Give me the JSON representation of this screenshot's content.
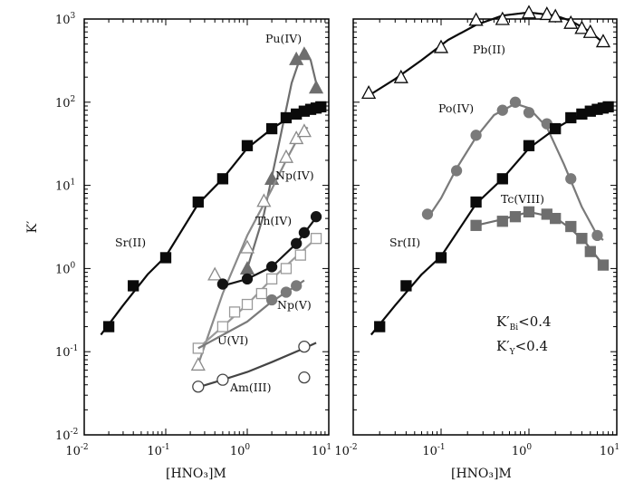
{
  "chart_data": [
    {
      "type": "scatter",
      "panel": "left",
      "xscale": "log",
      "yscale": "log",
      "xlim": [
        0.01,
        10
      ],
      "ylim": [
        0.01,
        1000
      ],
      "ylabel": "K′",
      "xlabel": "[HNO₃]M",
      "x_ticks": [
        {
          "base": "10",
          "exp": "-2"
        },
        {
          "base": "10",
          "exp": "-1"
        },
        {
          "base": "10",
          "exp": "0"
        },
        {
          "base": "10",
          "exp": "1"
        }
      ],
      "y_ticks": [
        {
          "base": "10",
          "exp": "-2"
        },
        {
          "base": "10",
          "exp": "-1"
        },
        {
          "base": "10",
          "exp": "0"
        },
        {
          "base": "10",
          "exp": "1"
        },
        {
          "base": "10",
          "exp": "2"
        },
        {
          "base": "10",
          "exp": "3"
        }
      ],
      "series": [
        {
          "name": "Pu(IV)",
          "marker": "triangle-filled",
          "color": "#6e6e6e",
          "x": [
            1.0,
            2.0,
            4.0,
            5.0,
            7.0
          ],
          "y": [
            1.0,
            12,
            330,
            380,
            150
          ],
          "curve_x": [
            1.0,
            1.6,
            2.5,
            3.5,
            4.5,
            5.2,
            6.0,
            7.0
          ],
          "curve_y": [
            1.0,
            4.5,
            35,
            170,
            350,
            420,
            320,
            170
          ]
        },
        {
          "name": "Np(IV)",
          "marker": "triangle-open",
          "color": "#8a8a8a",
          "x": [
            0.25,
            0.4,
            1.0,
            1.6,
            3.0,
            4.0,
            5.0
          ],
          "y": [
            0.07,
            0.85,
            1.8,
            6.5,
            22,
            37,
            45
          ],
          "curve_x": [
            0.25,
            0.5,
            1.0,
            2.0,
            3.0,
            4.0,
            5.5
          ],
          "curve_y": [
            0.07,
            0.5,
            2.5,
            9,
            20,
            34,
            50
          ]
        },
        {
          "name": "Th(IV)",
          "marker": "circle-filled",
          "color": "#141414",
          "x": [
            0.5,
            1.0,
            2.0,
            4.0,
            5.0,
            7.0
          ],
          "y": [
            0.65,
            0.75,
            1.05,
            2.0,
            2.7,
            4.2
          ],
          "curve_x": [
            0.5,
            1.0,
            2.0,
            4.0,
            7.0
          ],
          "curve_y": [
            0.62,
            0.75,
            1.05,
            2.0,
            4.1
          ]
        },
        {
          "name": "U(VI)",
          "marker": "square-open",
          "color": "#9a9a9a",
          "x": [
            0.25,
            0.5,
            0.7,
            1.0,
            1.5,
            2.0,
            3.0,
            4.5,
            7.0
          ],
          "y": [
            0.11,
            0.2,
            0.3,
            0.37,
            0.5,
            0.75,
            1.0,
            1.45,
            2.3
          ],
          "curve_x": [
            0.25,
            0.5,
            1.0,
            2.0,
            4.0,
            7.0
          ],
          "curve_y": [
            0.11,
            0.2,
            0.37,
            0.75,
            1.4,
            2.3
          ]
        },
        {
          "name": "Np(V)",
          "marker": "circle-filled",
          "color": "#7a7a7a",
          "x": [
            2.0,
            3.0,
            4.0
          ],
          "y": [
            0.42,
            0.52,
            0.62
          ],
          "curve_x": [
            0.25,
            1.0,
            2.0,
            3.0,
            4.0,
            5.0
          ],
          "curve_y": [
            0.11,
            0.23,
            0.4,
            0.52,
            0.62,
            0.72
          ]
        },
        {
          "name": "Am(III)",
          "marker": "circle-open",
          "color": "#444444",
          "x": [
            0.25,
            0.5,
            5.0,
            5.0
          ],
          "y": [
            0.038,
            0.046,
            0.049,
            0.115
          ],
          "curve_x": [
            0.22,
            0.5,
            1.0,
            2.0,
            5.0,
            7.0
          ],
          "curve_y": [
            0.036,
            0.046,
            0.057,
            0.075,
            0.11,
            0.128
          ]
        },
        {
          "name": "Sr(II)",
          "marker": "square-filled",
          "color": "#0a0a0a",
          "x": [
            0.02,
            0.04,
            0.1,
            0.25,
            0.5,
            1.0,
            2.0,
            3.0,
            4.0,
            5.0,
            6.0,
            7.0,
            8.0
          ],
          "y": [
            0.2,
            0.62,
            1.35,
            6.3,
            12,
            30,
            48,
            65,
            72,
            78,
            82,
            85,
            88
          ],
          "curve_x": [
            0.016,
            0.03,
            0.06,
            0.1,
            0.25,
            0.5,
            1.0,
            2.0,
            3.0,
            5.0,
            8.0
          ],
          "curve_y": [
            0.16,
            0.36,
            0.85,
            1.4,
            6.0,
            12,
            28,
            48,
            62,
            78,
            88
          ]
        }
      ]
    },
    {
      "type": "scatter",
      "panel": "right",
      "xscale": "log",
      "yscale": "log",
      "xlim": [
        0.01,
        10
      ],
      "ylim": [
        0.01,
        1000
      ],
      "xlabel": "[HNO₃]M",
      "x_ticks": [
        {
          "base": "10",
          "exp": "-2"
        },
        {
          "base": "10",
          "exp": "-1"
        },
        {
          "base": "10",
          "exp": "0"
        },
        {
          "base": "10",
          "exp": "1"
        }
      ],
      "series": [
        {
          "name": "Pb(II)",
          "marker": "triangle-open",
          "color": "#0a0a0a",
          "x": [
            0.015,
            0.035,
            0.1,
            0.25,
            0.5,
            1.0,
            1.6,
            2.0,
            3.0,
            4.0,
            5.0,
            7.0
          ],
          "y": [
            130,
            200,
            460,
            980,
            1000,
            1200,
            1150,
            1080,
            900,
            780,
            700,
            540
          ],
          "curve_x": [
            0.015,
            0.03,
            0.06,
            0.12,
            0.25,
            0.5,
            1.0,
            2.0,
            3.0,
            5.0,
            7.0
          ],
          "curve_y": [
            120,
            190,
            320,
            560,
            850,
            1100,
            1200,
            1100,
            950,
            700,
            520
          ]
        },
        {
          "name": "Po(IV)",
          "marker": "circle-filled",
          "color": "#7a7a7a",
          "x": [
            0.07,
            0.15,
            0.25,
            0.5,
            0.7,
            1.0,
            1.6,
            3.0,
            6.0
          ],
          "y": [
            4.5,
            15,
            40,
            80,
            100,
            75,
            55,
            12,
            2.5
          ],
          "curve_x": [
            0.07,
            0.1,
            0.15,
            0.25,
            0.4,
            0.7,
            1.0,
            1.6,
            2.5,
            4.0,
            6.0,
            7.0
          ],
          "curve_y": [
            4.0,
            7.0,
            16,
            38,
            70,
            96,
            85,
            50,
            18,
            5.5,
            2.5,
            2.2
          ]
        },
        {
          "name": "Tc(VIII)",
          "marker": "square-filled",
          "color": "#6e6e6e",
          "x": [
            0.25,
            0.5,
            0.7,
            1.0,
            1.6,
            2.0,
            3.0,
            4.0,
            5.0,
            7.0
          ],
          "y": [
            3.3,
            3.7,
            4.2,
            4.8,
            4.5,
            4.0,
            3.2,
            2.3,
            1.6,
            1.1
          ],
          "curve_x": [
            0.25,
            0.5,
            1.0,
            2.0,
            3.0,
            4.5,
            7.0
          ],
          "curve_y": [
            3.3,
            3.9,
            4.8,
            4.1,
            3.0,
            2.0,
            1.1
          ]
        },
        {
          "name": "Sr(II)",
          "marker": "square-filled",
          "color": "#0a0a0a",
          "x": [
            0.02,
            0.04,
            0.1,
            0.25,
            0.5,
            1.0,
            2.0,
            3.0,
            4.0,
            5.0,
            6.0,
            7.0,
            8.0
          ],
          "y": [
            0.2,
            0.62,
            1.35,
            6.3,
            12,
            30,
            48,
            65,
            72,
            78,
            82,
            85,
            88
          ],
          "curve_x": [
            0.016,
            0.03,
            0.06,
            0.1,
            0.25,
            0.5,
            1.0,
            2.0,
            3.0,
            5.0,
            8.0
          ],
          "curve_y": [
            0.16,
            0.36,
            0.85,
            1.4,
            6.0,
            12,
            28,
            48,
            62,
            78,
            88
          ]
        }
      ],
      "annotations": [
        {
          "main": "K′",
          "sub": "Bi",
          "rest": "<0.4"
        },
        {
          "main": "K′",
          "sub": "Y",
          "rest": "<0.4"
        }
      ]
    }
  ]
}
